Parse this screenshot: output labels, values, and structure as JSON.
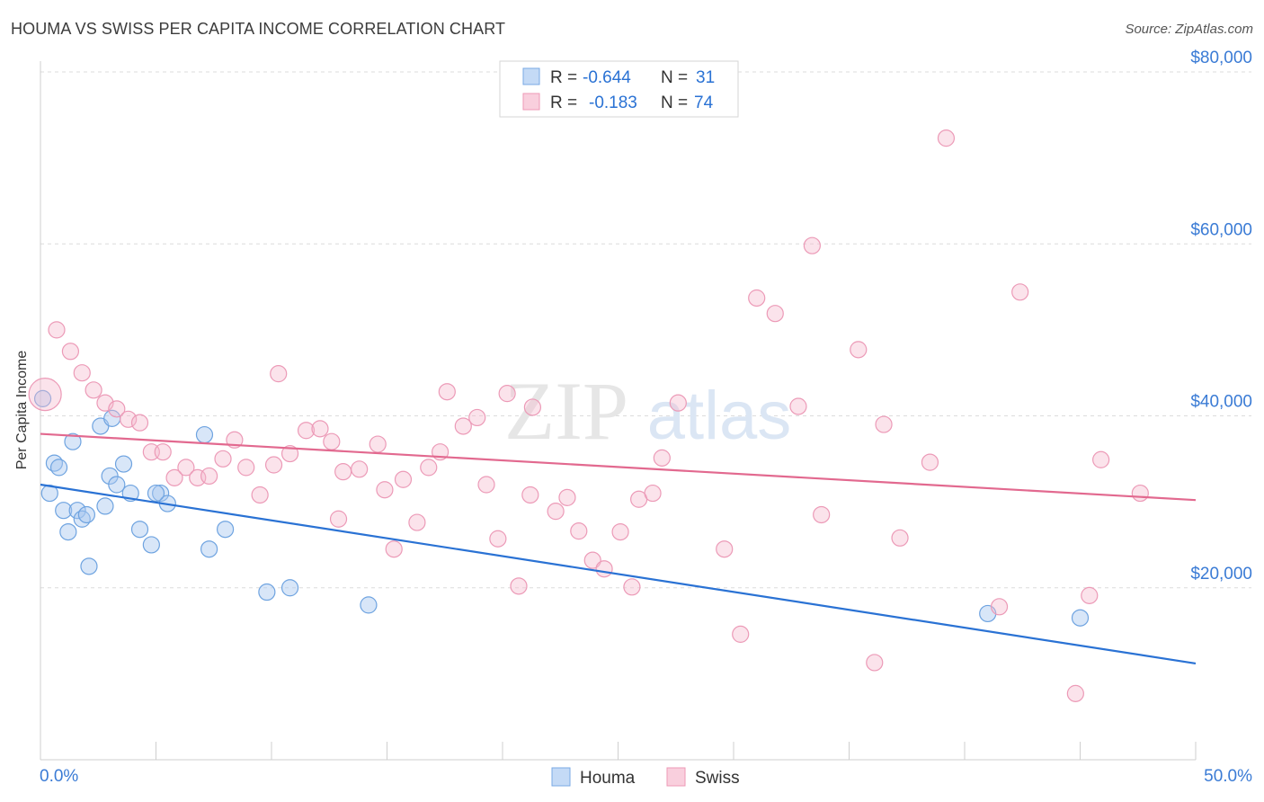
{
  "title": "HOUMA VS SWISS PER CAPITA INCOME CORRELATION CHART",
  "source": "Source: ZipAtlas.com",
  "watermark": {
    "zip": "ZIP",
    "atlas": "atlas"
  },
  "legend_top": [
    {
      "r_label": "R =",
      "r_value": "-0.644",
      "n_label": "N =",
      "n_value": "31",
      "color": "#a8c8f0"
    },
    {
      "r_label": "R =",
      "r_value": "-0.183",
      "n_label": "N =",
      "n_value": "74",
      "color": "#f5b8cc"
    }
  ],
  "legend_bottom": [
    {
      "label": "Houma",
      "color": "#a8c8f0"
    },
    {
      "label": "Swiss",
      "color": "#f5b8cc"
    }
  ],
  "chart_data": {
    "type": "scatter",
    "title": "HOUMA VS SWISS PER CAPITA INCOME CORRELATION CHART",
    "xlabel": "",
    "ylabel": "Per Capita Income",
    "xlim": [
      0,
      50
    ],
    "ylim": [
      0,
      80000
    ],
    "x_tick_labels": [
      "0.0%",
      "50.0%"
    ],
    "y_ticks": [
      20000,
      40000,
      60000,
      80000
    ],
    "y_tick_labels": [
      "$20,000",
      "$40,000",
      "$60,000",
      "$80,000"
    ],
    "grid": true,
    "series": [
      {
        "name": "Houma",
        "color": "#6ea3e0",
        "line_color": "#2a72d4",
        "trend": [
          [
            0,
            32000
          ],
          [
            50,
            11200
          ]
        ],
        "points": [
          [
            0.1,
            42000
          ],
          [
            0.4,
            31000
          ],
          [
            0.6,
            34500
          ],
          [
            0.8,
            34000
          ],
          [
            1.0,
            29000
          ],
          [
            1.2,
            26500
          ],
          [
            1.4,
            37000
          ],
          [
            1.6,
            29000
          ],
          [
            1.8,
            28000
          ],
          [
            2.0,
            28500
          ],
          [
            2.1,
            22500
          ],
          [
            2.6,
            38800
          ],
          [
            2.8,
            29500
          ],
          [
            3.0,
            33000
          ],
          [
            3.1,
            39700
          ],
          [
            3.3,
            32000
          ],
          [
            3.6,
            34400
          ],
          [
            3.9,
            31000
          ],
          [
            4.3,
            26800
          ],
          [
            4.8,
            25000
          ],
          [
            5.2,
            31000
          ],
          [
            5.5,
            29800
          ],
          [
            7.1,
            37800
          ],
          [
            7.3,
            24500
          ],
          [
            8.0,
            26800
          ],
          [
            9.8,
            19500
          ],
          [
            10.8,
            20000
          ],
          [
            14.2,
            18000
          ],
          [
            41.0,
            17000
          ],
          [
            45.0,
            16500
          ],
          [
            5.0,
            31000
          ]
        ]
      },
      {
        "name": "Swiss",
        "color": "#f5b0c8",
        "line_color": "#e2698f",
        "trend": [
          [
            0,
            37900
          ],
          [
            50,
            30200
          ]
        ],
        "points": [
          [
            0.2,
            42500
          ],
          [
            0.7,
            50000
          ],
          [
            1.3,
            47500
          ],
          [
            1.8,
            45000
          ],
          [
            2.3,
            43000
          ],
          [
            2.8,
            41500
          ],
          [
            3.3,
            40800
          ],
          [
            3.8,
            39600
          ],
          [
            4.3,
            39200
          ],
          [
            4.8,
            35800
          ],
          [
            5.3,
            35800
          ],
          [
            5.8,
            32800
          ],
          [
            6.3,
            34000
          ],
          [
            6.8,
            32800
          ],
          [
            7.3,
            33000
          ],
          [
            7.9,
            35000
          ],
          [
            8.4,
            37200
          ],
          [
            8.9,
            34000
          ],
          [
            9.5,
            30800
          ],
          [
            10.1,
            34300
          ],
          [
            10.3,
            44900
          ],
          [
            10.8,
            35600
          ],
          [
            11.5,
            38300
          ],
          [
            12.1,
            38500
          ],
          [
            12.6,
            37000
          ],
          [
            12.9,
            28000
          ],
          [
            13.1,
            33500
          ],
          [
            13.8,
            33800
          ],
          [
            14.6,
            36700
          ],
          [
            14.9,
            31400
          ],
          [
            15.3,
            24500
          ],
          [
            15.7,
            32600
          ],
          [
            16.3,
            27600
          ],
          [
            16.8,
            34000
          ],
          [
            17.3,
            35800
          ],
          [
            17.6,
            42800
          ],
          [
            18.3,
            38800
          ],
          [
            18.9,
            39800
          ],
          [
            19.3,
            32000
          ],
          [
            19.8,
            25700
          ],
          [
            20.2,
            42600
          ],
          [
            20.7,
            20200
          ],
          [
            21.2,
            30800
          ],
          [
            21.3,
            41000
          ],
          [
            22.3,
            28900
          ],
          [
            22.8,
            30500
          ],
          [
            23.3,
            26600
          ],
          [
            23.9,
            23200
          ],
          [
            24.4,
            22200
          ],
          [
            25.1,
            26500
          ],
          [
            25.6,
            20100
          ],
          [
            25.9,
            30300
          ],
          [
            26.5,
            31000
          ],
          [
            26.9,
            35100
          ],
          [
            27.6,
            41500
          ],
          [
            29.6,
            24500
          ],
          [
            30.3,
            14600
          ],
          [
            31.0,
            53700
          ],
          [
            31.8,
            51900
          ],
          [
            32.8,
            41100
          ],
          [
            33.4,
            59800
          ],
          [
            33.8,
            28500
          ],
          [
            35.4,
            47700
          ],
          [
            36.1,
            11300
          ],
          [
            36.5,
            39000
          ],
          [
            37.2,
            25800
          ],
          [
            38.5,
            34600
          ],
          [
            39.2,
            72300
          ],
          [
            41.5,
            17800
          ],
          [
            42.4,
            54400
          ],
          [
            44.8,
            7700
          ],
          [
            45.4,
            19100
          ],
          [
            45.9,
            34900
          ],
          [
            47.6,
            31000
          ]
        ]
      }
    ]
  }
}
